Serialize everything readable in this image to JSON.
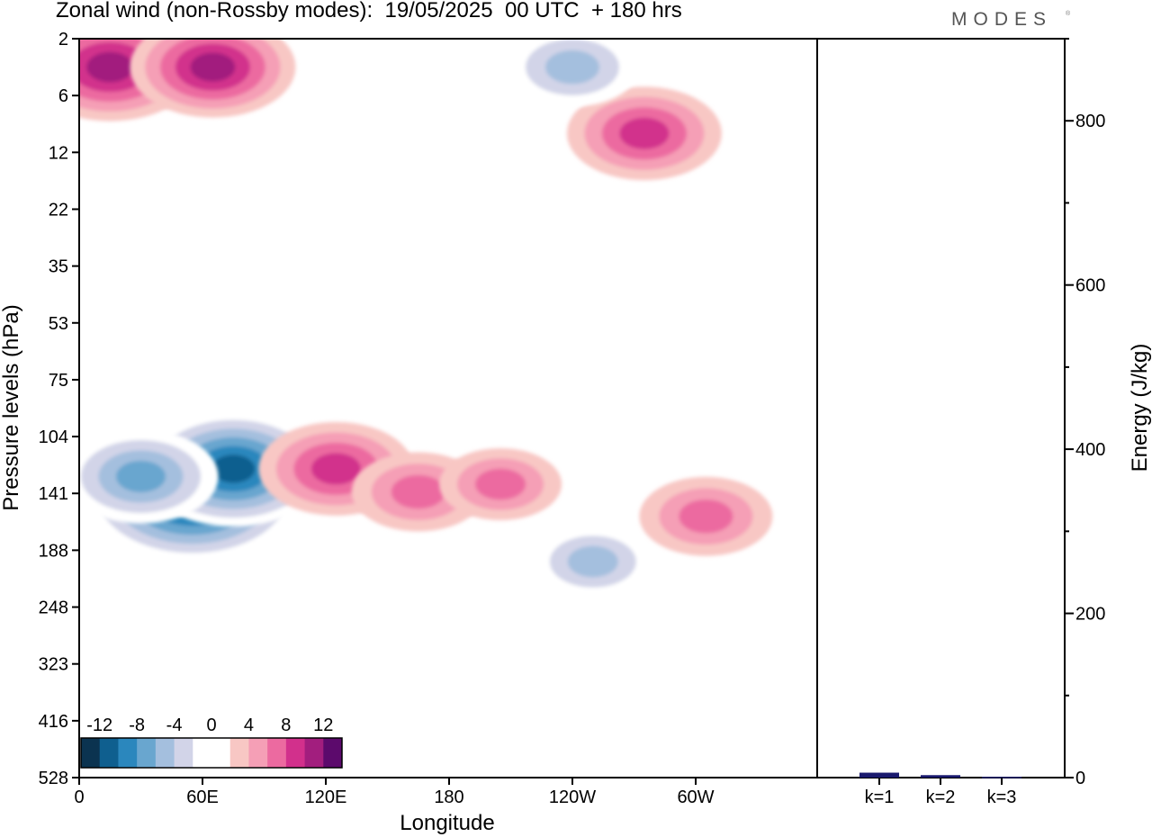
{
  "title": "Zonal wind (non-Rossby modes):  19/05/2025  00 UTC  + 180 hrs",
  "logo": "MODES",
  "logo_mark": "®",
  "chart_data": [
    {
      "type": "heatmap",
      "xlabel": "Longitude",
      "ylabel": "Pressure levels (hPa)",
      "x_ticks": [
        "0",
        "60E",
        "120E",
        "180",
        "120W",
        "60W"
      ],
      "y_ticks": [
        "2",
        "6",
        "12",
        "22",
        "35",
        "53",
        "75",
        "104",
        "141",
        "188",
        "248",
        "323",
        "416",
        "528"
      ],
      "colorbar": {
        "labels": [
          "-12",
          "-8",
          "-4",
          "0",
          "4",
          "8",
          "12"
        ],
        "levels": [
          -14,
          -12,
          -10,
          -8,
          -6,
          -4,
          -2,
          2,
          4,
          6,
          8,
          10,
          12,
          14
        ],
        "colors": [
          "#0b3350",
          "#0f5f8f",
          "#2b87bd",
          "#69a6cf",
          "#a4bfde",
          "#d2d4e8",
          "#ffffff",
          "#ffffff",
          "#f8c7c4",
          "#f59fb6",
          "#ec6aa0",
          "#d2308c",
          "#a21e7e",
          "#5c0a6c"
        ]
      },
      "features": [
        {
          "lon": 55,
          "level": 141,
          "value": -14
        },
        {
          "lon": 75,
          "level": 125,
          "value": -11
        },
        {
          "lon": 30,
          "level": 130,
          "value": -8
        },
        {
          "lon": 125,
          "level": 125,
          "value": 8
        },
        {
          "lon": 165,
          "level": 140,
          "value": 6
        },
        {
          "lon": 205,
          "level": 135,
          "value": 5
        },
        {
          "lon": 15,
          "level": 4,
          "value": 10
        },
        {
          "lon": 65,
          "level": 4,
          "value": 9
        },
        {
          "lon": 275,
          "level": 10,
          "value": 8
        },
        {
          "lon": 240,
          "level": 4,
          "value": -6
        },
        {
          "lon": 250,
          "level": 200,
          "value": -5
        },
        {
          "lon": 305,
          "level": 160,
          "value": 6
        }
      ]
    },
    {
      "type": "bar",
      "categories": [
        "k=1",
        "k=2",
        "k=3"
      ],
      "values": [
        6,
        3,
        1
      ],
      "ylabel": "Energy (J/kg)",
      "ylim": [
        0,
        900
      ],
      "y_ticks": [
        0,
        200,
        400,
        600,
        800
      ],
      "bar_color": "#1a1a6e"
    }
  ]
}
